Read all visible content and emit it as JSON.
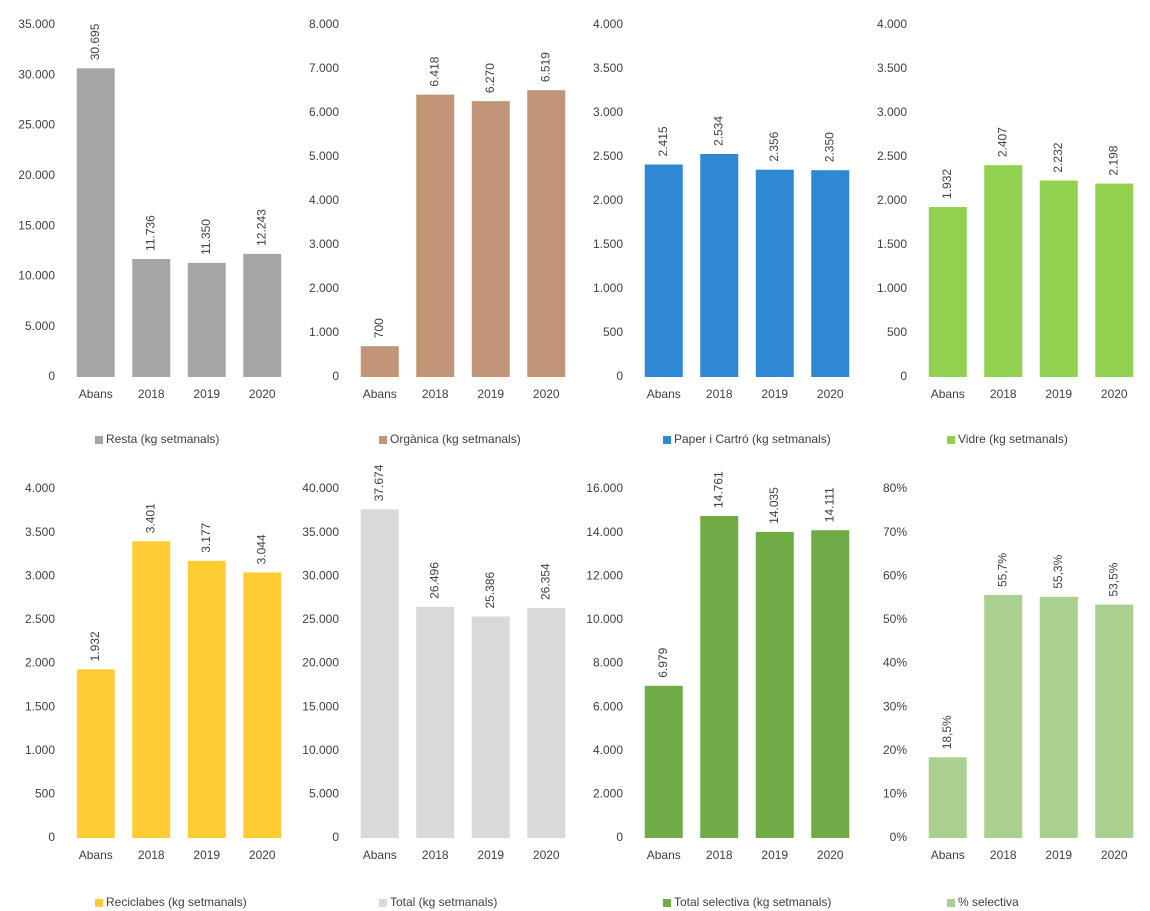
{
  "chart_data": [
    {
      "type": "bar",
      "categories": [
        "Abans",
        "2018",
        "2019",
        "2020"
      ],
      "series": [
        {
          "name": "Resta (kg setmanals)",
          "color": "#a5a5a5",
          "values": [
            30695,
            11736,
            11350,
            12243
          ],
          "value_labels": [
            "30.695",
            "11.736",
            "11.350",
            "12.243"
          ]
        }
      ],
      "ylim": [
        0,
        35000
      ],
      "yticks": [
        0,
        {
          "value": 5000,
          "label": "5.000"
        },
        {
          "value": 10000,
          "label": "10.000"
        },
        {
          "value": 15000,
          "label": "15.000"
        },
        {
          "value": 20000,
          "label": "20.000"
        },
        {
          "value": 25000,
          "label": "25.000"
        },
        {
          "value": 30000,
          "label": "30.000"
        },
        {
          "value": 35000,
          "label": "35.000"
        }
      ]
    },
    {
      "type": "bar",
      "categories": [
        "Abans",
        "2018",
        "2019",
        "2020"
      ],
      "series": [
        {
          "name": "Orgànica (kg setmanals)",
          "color": "#c19576",
          "values": [
            700,
            6418,
            6270,
            6519
          ],
          "value_labels": [
            "700",
            "6.418",
            "6.270",
            "6.519"
          ]
        }
      ],
      "ylim": [
        0,
        8000
      ],
      "yticks": [
        0,
        {
          "value": 1000,
          "label": "1.000"
        },
        {
          "value": 2000,
          "label": "2.000"
        },
        {
          "value": 3000,
          "label": "3.000"
        },
        {
          "value": 4000,
          "label": "4.000"
        },
        {
          "value": 5000,
          "label": "5.000"
        },
        {
          "value": 6000,
          "label": "6.000"
        },
        {
          "value": 7000,
          "label": "7.000"
        },
        {
          "value": 8000,
          "label": "8.000"
        }
      ]
    },
    {
      "type": "bar",
      "categories": [
        "Abans",
        "2018",
        "2019",
        "2020"
      ],
      "series": [
        {
          "name": "Paper i Cartró (kg setmanals)",
          "color": "#2f88d3",
          "values": [
            2415,
            2534,
            2356,
            2350
          ],
          "value_labels": [
            "2.415",
            "2.534",
            "2.356",
            "2.350"
          ]
        }
      ],
      "ylim": [
        0,
        4000
      ],
      "yticks": [
        0,
        500,
        {
          "value": 1000,
          "label": "1.000"
        },
        {
          "value": 1500,
          "label": "1.500"
        },
        {
          "value": 2000,
          "label": "2.000"
        },
        {
          "value": 2500,
          "label": "2.500"
        },
        {
          "value": 3000,
          "label": "3.000"
        },
        {
          "value": 3500,
          "label": "3.500"
        },
        {
          "value": 4000,
          "label": "4.000"
        }
      ]
    },
    {
      "type": "bar",
      "categories": [
        "Abans",
        "2018",
        "2019",
        "2020"
      ],
      "series": [
        {
          "name": "Vidre (kg setmanals)",
          "color": "#92d050",
          "values": [
            1932,
            2407,
            2232,
            2198
          ],
          "value_labels": [
            "1.932",
            "2.407",
            "2.232",
            "2.198"
          ]
        }
      ],
      "ylim": [
        0,
        4000
      ],
      "yticks": [
        0,
        500,
        {
          "value": 1000,
          "label": "1.000"
        },
        {
          "value": 1500,
          "label": "1.500"
        },
        {
          "value": 2000,
          "label": "2.000"
        },
        {
          "value": 2500,
          "label": "2.500"
        },
        {
          "value": 3000,
          "label": "3.000"
        },
        {
          "value": 3500,
          "label": "3.500"
        },
        {
          "value": 4000,
          "label": "4.000"
        }
      ]
    },
    {
      "type": "bar",
      "categories": [
        "Abans",
        "2018",
        "2019",
        "2020"
      ],
      "series": [
        {
          "name": "Reciclabes (kg setmanals)",
          "color": "#ffcc33",
          "values": [
            1932,
            3401,
            3177,
            3044
          ],
          "value_labels": [
            "1.932",
            "3.401",
            "3.177",
            "3.044"
          ]
        }
      ],
      "ylim": [
        0,
        4000
      ],
      "yticks": [
        0,
        500,
        {
          "value": 1000,
          "label": "1.000"
        },
        {
          "value": 1500,
          "label": "1.500"
        },
        {
          "value": 2000,
          "label": "2.000"
        },
        {
          "value": 2500,
          "label": "2.500"
        },
        {
          "value": 3000,
          "label": "3.000"
        },
        {
          "value": 3500,
          "label": "3.500"
        },
        {
          "value": 4000,
          "label": "4.000"
        }
      ]
    },
    {
      "type": "bar",
      "categories": [
        "Abans",
        "2018",
        "2019",
        "2020"
      ],
      "series": [
        {
          "name": "Total (kg setmanals)",
          "color": "#d9d9d9",
          "values": [
            37674,
            26496,
            25386,
            26354
          ],
          "value_labels": [
            "37.674",
            "26.496",
            "25.386",
            "26.354"
          ]
        }
      ],
      "ylim": [
        0,
        40000
      ],
      "yticks": [
        0,
        {
          "value": 5000,
          "label": "5.000"
        },
        {
          "value": 10000,
          "label": "10.000"
        },
        {
          "value": 15000,
          "label": "15.000"
        },
        {
          "value": 20000,
          "label": "20.000"
        },
        {
          "value": 25000,
          "label": "25.000"
        },
        {
          "value": 30000,
          "label": "30.000"
        },
        {
          "value": 35000,
          "label": "35.000"
        },
        {
          "value": 40000,
          "label": "40.000"
        }
      ]
    },
    {
      "type": "bar",
      "categories": [
        "Abans",
        "2018",
        "2019",
        "2020"
      ],
      "series": [
        {
          "name": "Total selectiva (kg setmanals)",
          "color": "#6fac46",
          "values": [
            6979,
            14761,
            14035,
            14111
          ],
          "value_labels": [
            "6.979",
            "14.761",
            "14.035",
            "14.111"
          ]
        }
      ],
      "ylim": [
        0,
        16000
      ],
      "yticks": [
        0,
        {
          "value": 2000,
          "label": "2.000"
        },
        {
          "value": 4000,
          "label": "4.000"
        },
        {
          "value": 6000,
          "label": "6.000"
        },
        {
          "value": 8000,
          "label": "8.000"
        },
        {
          "value": 10000,
          "label": "10.000"
        },
        {
          "value": 12000,
          "label": "12.000"
        },
        {
          "value": 14000,
          "label": "14.000"
        },
        {
          "value": 16000,
          "label": "16.000"
        }
      ]
    },
    {
      "type": "bar",
      "categories": [
        "Abans",
        "2018",
        "2019",
        "2020"
      ],
      "series": [
        {
          "name": "% selectiva",
          "color": "#a9d08e",
          "values": [
            18.5,
            55.7,
            55.3,
            53.5
          ],
          "value_labels": [
            "18,5%",
            "55,7%",
            "55,3%",
            "53,5%"
          ]
        }
      ],
      "ylim": [
        0,
        80
      ],
      "yticks": [
        {
          "value": 0,
          "label": "0%"
        },
        {
          "value": 10,
          "label": "10%"
        },
        {
          "value": 20,
          "label": "20%"
        },
        {
          "value": 30,
          "label": "30%"
        },
        {
          "value": 40,
          "label": "40%"
        },
        {
          "value": 50,
          "label": "50%"
        },
        {
          "value": 60,
          "label": "60%"
        },
        {
          "value": 70,
          "label": "70%"
        },
        {
          "value": 80,
          "label": "80%"
        }
      ]
    }
  ]
}
